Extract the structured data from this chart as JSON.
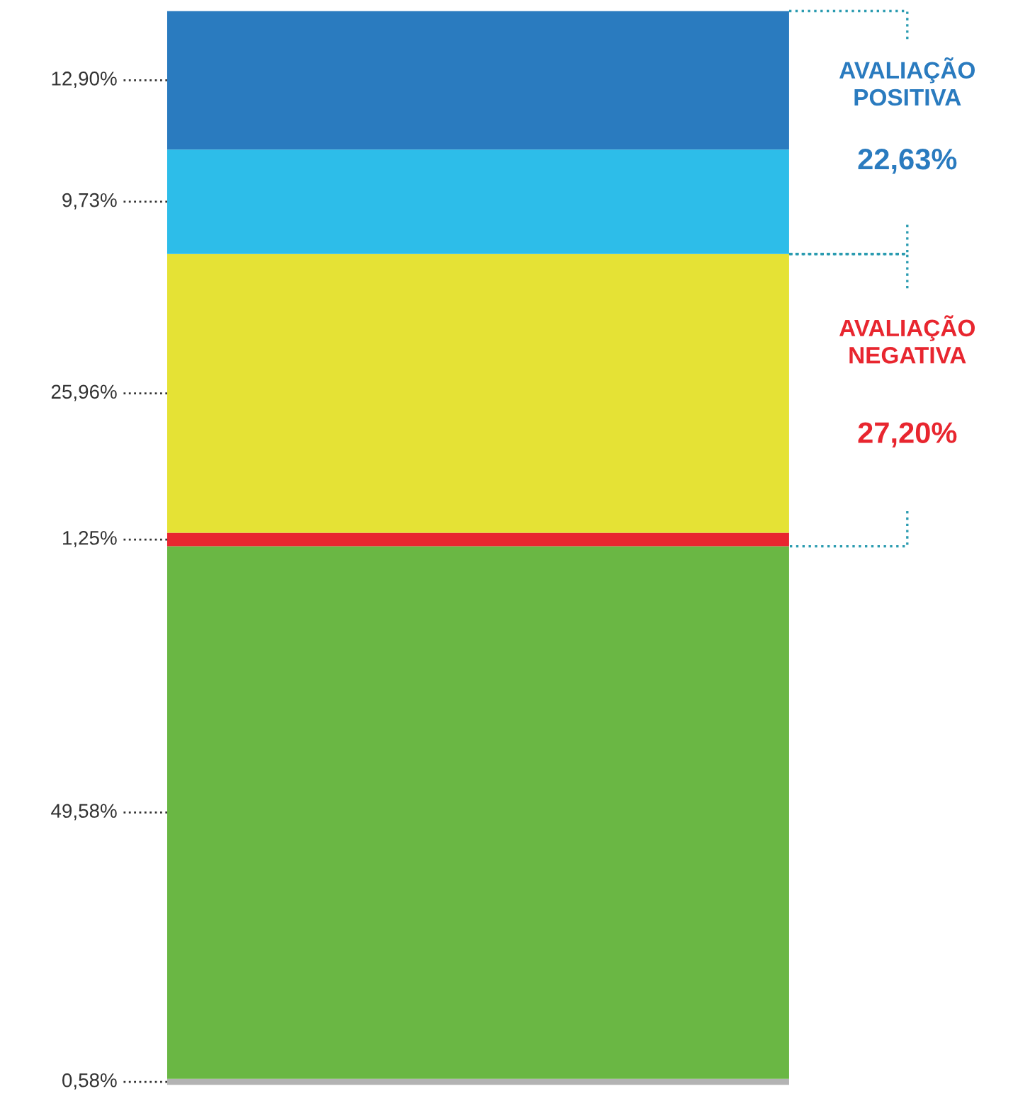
{
  "chart_data": {
    "type": "bar",
    "stacked": true,
    "categories": [
      null
    ],
    "series": [
      {
        "color": "#b3b3b3",
        "values": [
          0.58
        ],
        "value_labels": [
          "0,58%"
        ]
      },
      {
        "color": "#6ab744",
        "values": [
          49.58
        ],
        "value_labels": [
          "49,58%"
        ]
      },
      {
        "color": "#e8262f",
        "values": [
          1.25
        ],
        "value_labels": [
          "1,25%"
        ]
      },
      {
        "color": "#e5e235",
        "values": [
          25.96
        ],
        "value_labels": [
          "25,96%"
        ]
      },
      {
        "color": "#2dbde9",
        "values": [
          9.73
        ],
        "value_labels": [
          "9,73%"
        ]
      },
      {
        "color": "#2a7bbf",
        "values": [
          12.9
        ],
        "value_labels": [
          "12,90%"
        ]
      }
    ],
    "annotations": [
      "AVALIAÇÃO\nPOSITIVA",
      "22,63%",
      "AVALIAÇÃO\nNEGATIVA",
      "27,20%"
    ]
  }
}
